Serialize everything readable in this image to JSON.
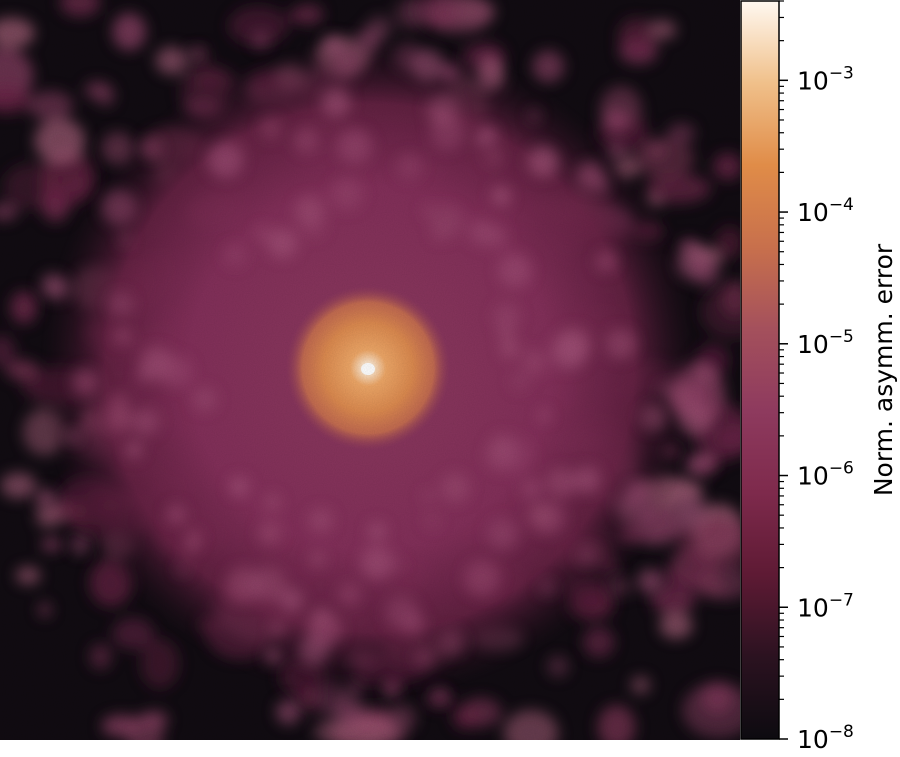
{
  "chart_data": {
    "type": "heatmap",
    "title": "",
    "xlabel": "",
    "ylabel": "",
    "axes_visible": false,
    "peak_location": "center",
    "colorbar": {
      "label": "Norm. asymm. error",
      "scale": "log",
      "range": [
        1e-08,
        0.004
      ],
      "position": "right",
      "colormap": [
        "#0d0b10",
        "#2b1220",
        "#5e1a34",
        "#7e2a4c",
        "#8e3a5e",
        "#a4505c",
        "#c8704c",
        "#e08c48",
        "#f0c08a",
        "#fff8f0"
      ],
      "major_ticks": [
        {
          "value": 1e-08,
          "base": "10",
          "exp": "−8"
        },
        {
          "value": 1e-07,
          "base": "10",
          "exp": "−7"
        },
        {
          "value": 1e-06,
          "base": "10",
          "exp": "−6"
        },
        {
          "value": 1e-05,
          "base": "10",
          "exp": "−5"
        },
        {
          "value": 0.0001,
          "base": "10",
          "exp": "−4"
        },
        {
          "value": 0.001,
          "base": "10",
          "exp": "−3"
        }
      ]
    }
  }
}
